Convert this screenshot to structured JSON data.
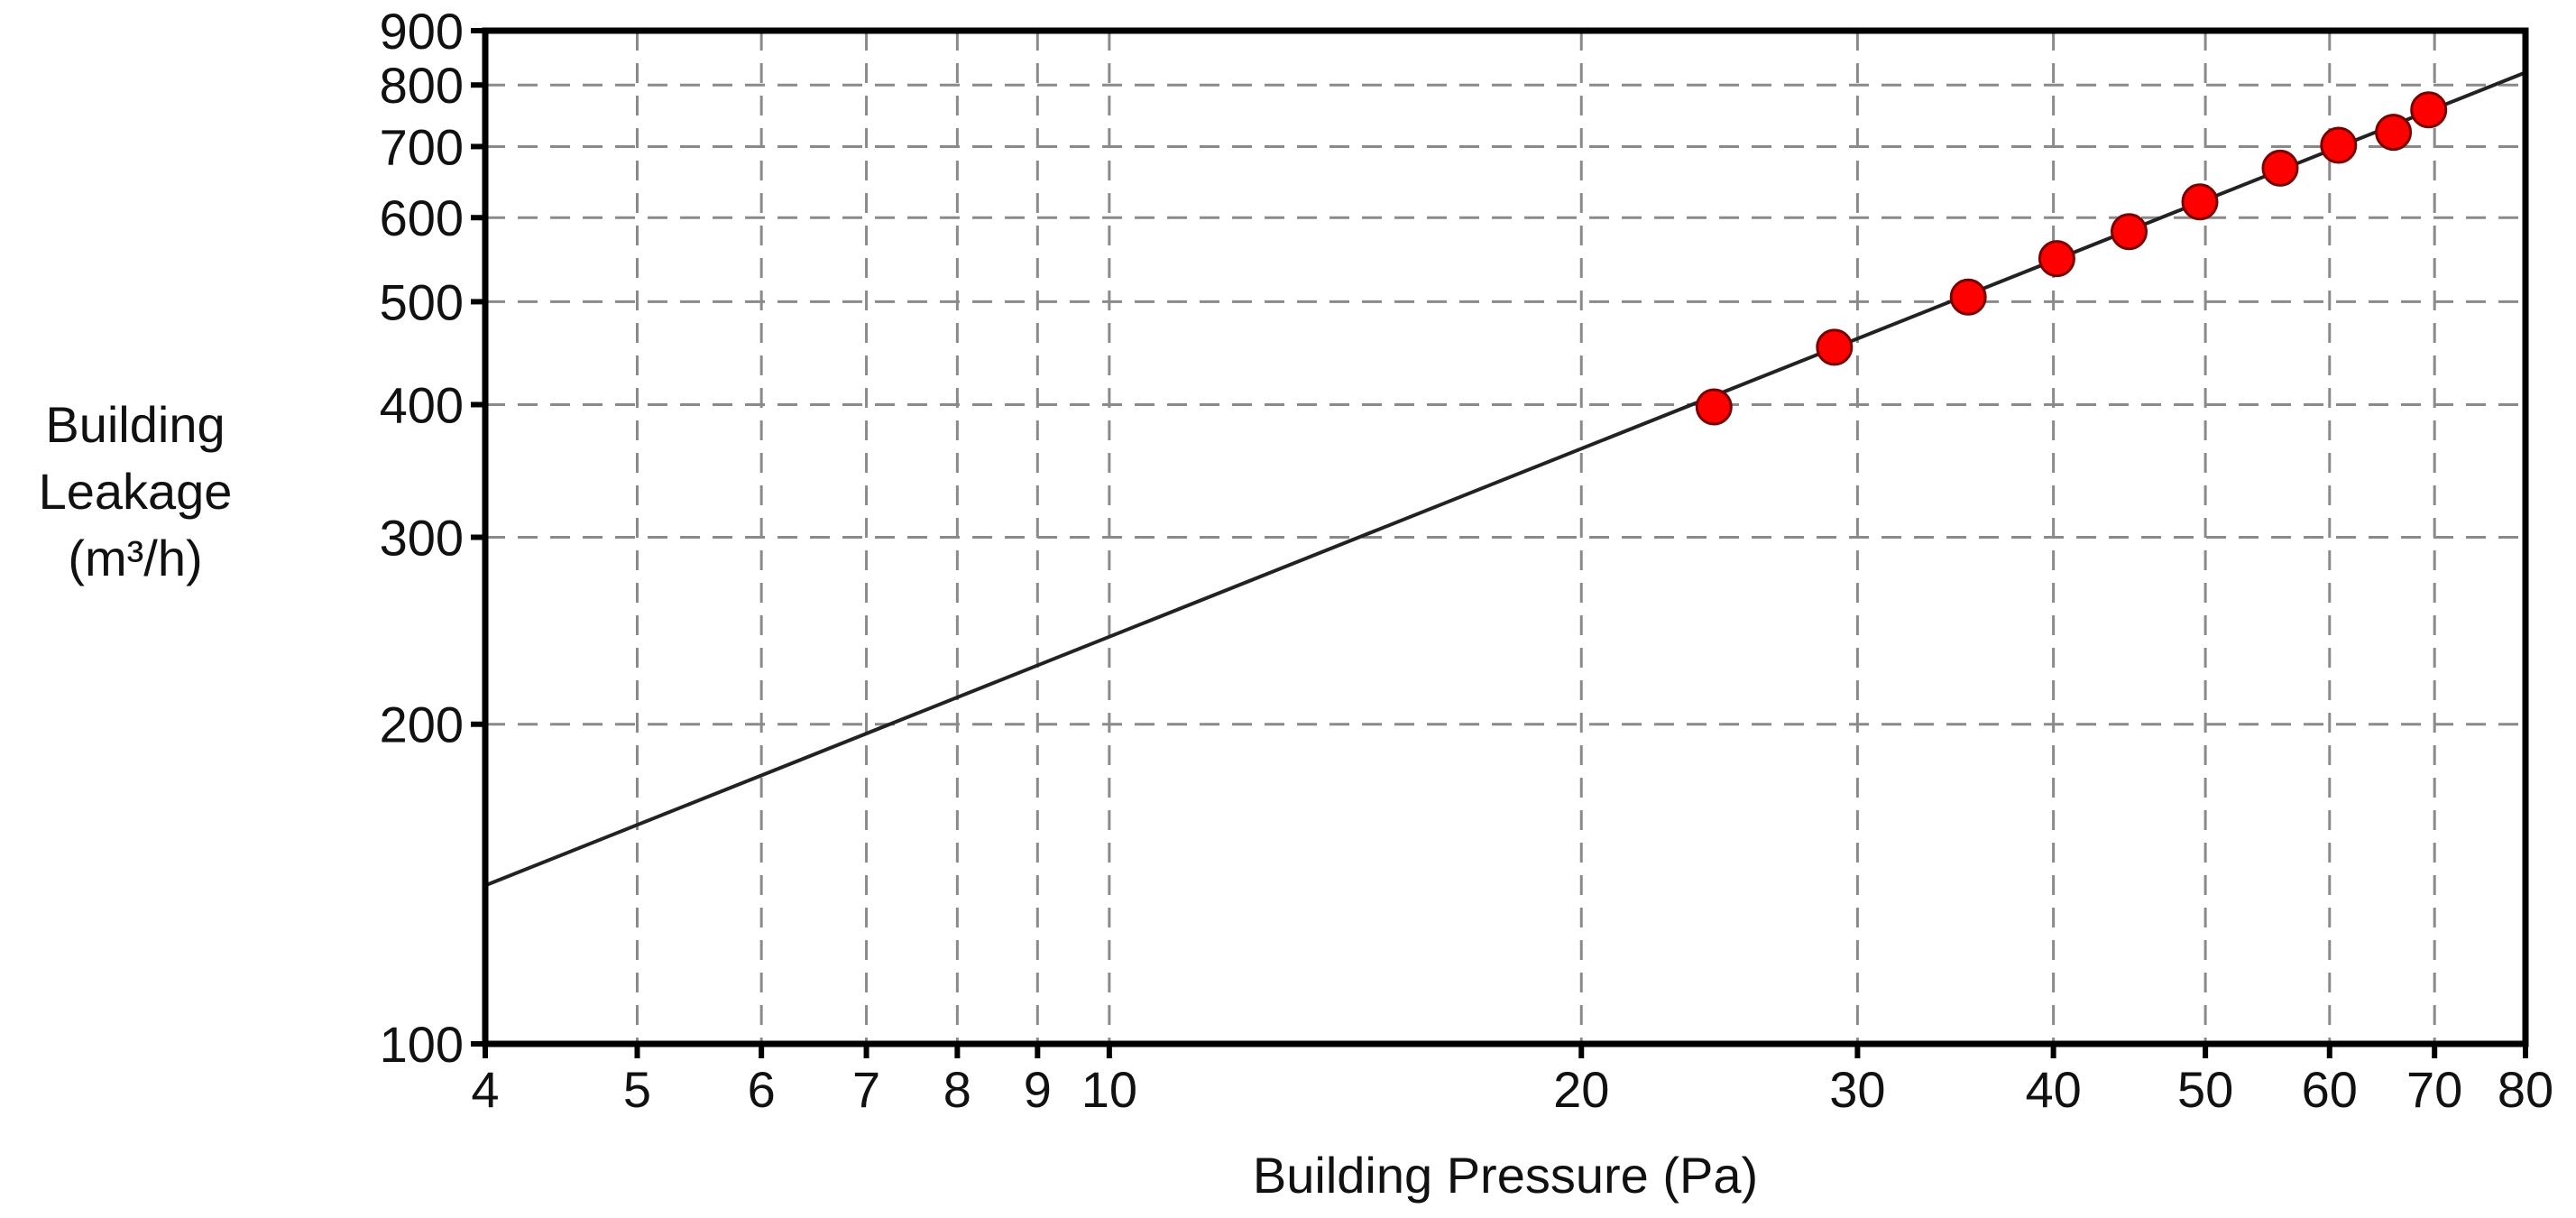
{
  "chart_data": {
    "type": "scatter",
    "xlabel": "Building Pressure (Pa)",
    "ylabel": [
      "Building",
      "Leakage",
      "(m³/h)"
    ],
    "x_scale": "log",
    "y_scale": "log",
    "xlim": [
      4,
      80
    ],
    "ylim": [
      100,
      900
    ],
    "grid": true,
    "x_ticks": [
      4,
      5,
      6,
      7,
      8,
      9,
      10,
      20,
      30,
      40,
      50,
      60,
      70,
      80
    ],
    "y_ticks": [
      100,
      200,
      300,
      400,
      500,
      600,
      700,
      800,
      900
    ],
    "point_color": "#ff0000",
    "line_color": "#222222",
    "series": [
      {
        "type": "scatter",
        "x": [
          24.3,
          29.0,
          35.3,
          40.2,
          44.7,
          49.6,
          55.8,
          60.8,
          65.9,
          69.4
        ],
        "y": [
          398,
          453,
          505,
          549,
          582,
          621,
          668,
          702,
          722,
          758
        ]
      },
      {
        "type": "line",
        "x": [
          4,
          80
        ],
        "y": [
          141,
          822
        ]
      }
    ]
  }
}
